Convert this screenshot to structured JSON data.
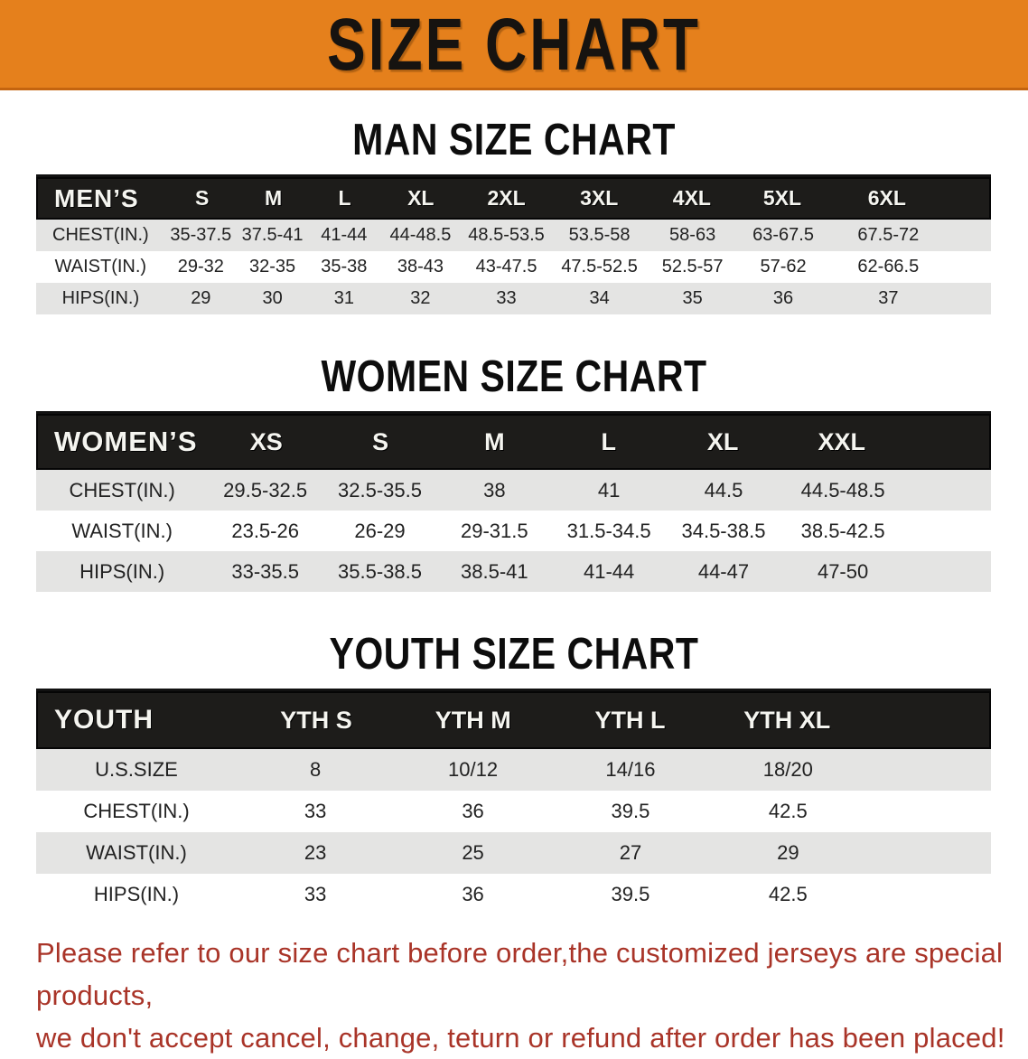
{
  "banner": {
    "title": "SIZE CHART",
    "bg_color": "#E5801C",
    "text_color": "#161310"
  },
  "sections": [
    {
      "heading": "MAN SIZE CHART",
      "table": {
        "header_label": "MEN’S",
        "columns": [
          "S",
          "M",
          "L",
          "XL",
          "2XL",
          "3XL",
          "4XL",
          "5XL",
          "6XL"
        ],
        "rows": [
          {
            "label": "CHEST(IN.)",
            "values": [
              "35-37.5",
              "37.5-41",
              "41-44",
              "44-48.5",
              "48.5-53.5",
              "53.5-58",
              "58-63",
              "63-67.5",
              "67.5-72"
            ]
          },
          {
            "label": "WAIST(IN.)",
            "values": [
              "29-32",
              "32-35",
              "35-38",
              "38-43",
              "43-47.5",
              "47.5-52.5",
              "52.5-57",
              "57-62",
              "62-66.5"
            ]
          },
          {
            "label": "HIPS(IN.)",
            "values": [
              "29",
              "30",
              "31",
              "32",
              "33",
              "34",
              "35",
              "36",
              "37"
            ]
          }
        ]
      }
    },
    {
      "heading": "WOMEN SIZE CHART",
      "table": {
        "header_label": "WOMEN’S",
        "columns": [
          "XS",
          "S",
          "M",
          "L",
          "XL",
          "XXL"
        ],
        "rows": [
          {
            "label": "CHEST(IN.)",
            "values": [
              "29.5-32.5",
              "32.5-35.5",
              "38",
              "41",
              "44.5",
              "44.5-48.5"
            ]
          },
          {
            "label": "WAIST(IN.)",
            "values": [
              "23.5-26",
              "26-29",
              "29-31.5",
              "31.5-34.5",
              "34.5-38.5",
              "38.5-42.5"
            ]
          },
          {
            "label": "HIPS(IN.)",
            "values": [
              "33-35.5",
              "35.5-38.5",
              "38.5-41",
              "41-44",
              "44-47",
              "47-50"
            ]
          }
        ]
      }
    },
    {
      "heading": "YOUTH SIZE CHART",
      "table": {
        "header_label": "YOUTH",
        "columns": [
          "YTH S",
          "YTH M",
          "YTH L",
          "YTH XL"
        ],
        "rows": [
          {
            "label": "U.S.SIZE",
            "values": [
              "8",
              "10/12",
              "14/16",
              "18/20"
            ]
          },
          {
            "label": "CHEST(IN.)",
            "values": [
              "33",
              "36",
              "39.5",
              "42.5"
            ]
          },
          {
            "label": "WAIST(IN.)",
            "values": [
              "23",
              "25",
              "27",
              "29"
            ]
          },
          {
            "label": "HIPS(IN.)",
            "values": [
              "33",
              "36",
              "39.5",
              "42.5"
            ]
          }
        ]
      }
    }
  ],
  "footer": {
    "text_color": "#A93428",
    "lines": [
      "Please refer to our size chart before order,the customized jerseys are special products,",
      "we don't accept cancel, change, teturn or refund after order has been placed!"
    ]
  }
}
